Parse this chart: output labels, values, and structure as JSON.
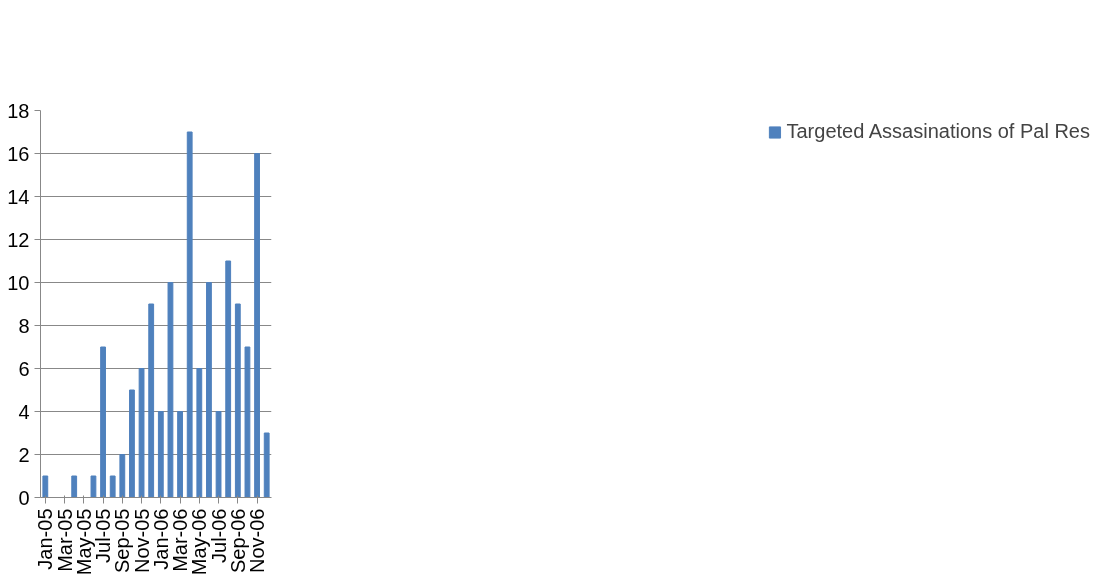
{
  "chart_data": {
    "type": "bar",
    "categories": [
      "Jan-05",
      null,
      "Mar-05",
      null,
      "May-05",
      null,
      "Jul-05",
      null,
      "Sep-05",
      null,
      "Nov-05",
      null,
      "Jan-06",
      null,
      "Mar-06",
      null,
      "May-06",
      null,
      "Jul-06",
      null,
      "Sep-06",
      null,
      "Nov-06",
      null
    ],
    "series": [
      {
        "name": "Targeted Assasinations of Pal Res",
        "color": "#4f81bd",
        "values": [
          1,
          0,
          0,
          1,
          0,
          1,
          7,
          1,
          2,
          5,
          6,
          9,
          4,
          10,
          4,
          17,
          6,
          10,
          4,
          11,
          9,
          7,
          16,
          3
        ]
      }
    ],
    "ylim": [
      0,
      18
    ],
    "yticks": [
      0,
      2,
      4,
      6,
      8,
      10,
      12,
      14,
      16,
      18
    ],
    "grid": "y",
    "legend": "right"
  }
}
